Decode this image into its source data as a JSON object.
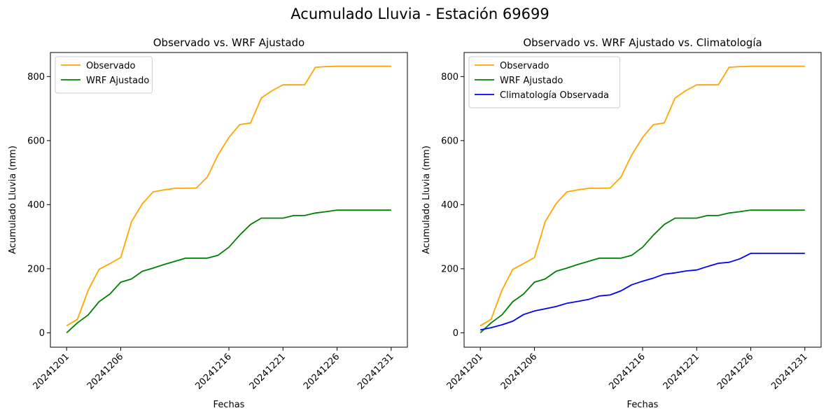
{
  "figure": {
    "title": "Acumulado Lluvia - Estación 69699"
  },
  "chart_data": [
    {
      "type": "line",
      "title": "Observado vs. WRF Ajustado",
      "xlabel": "Fechas",
      "ylabel": "Acumulado Lluvia (mm)",
      "x": [
        "20241201",
        "20241202",
        "20241203",
        "20241204",
        "20241205",
        "20241206",
        "20241207",
        "20241208",
        "20241209",
        "20241210",
        "20241211",
        "20241212",
        "20241213",
        "20241214",
        "20241215",
        "20241216",
        "20241217",
        "20241218",
        "20241219",
        "20241220",
        "20241221",
        "20241222",
        "20241223",
        "20241224",
        "20241225",
        "20241226",
        "20241227",
        "20241228",
        "20241229",
        "20241230",
        "20241231"
      ],
      "x_tick_labels": [
        "20241201",
        "20241206",
        "20241216",
        "20241221",
        "20241226",
        "20241231"
      ],
      "ylim": [
        -45,
        875
      ],
      "y_ticks": [
        0,
        200,
        400,
        600,
        800
      ],
      "legend_position": "upper-left",
      "grid": false,
      "series": [
        {
          "name": "Observado",
          "color": "#ffa500",
          "values": [
            22,
            42,
            133,
            198,
            216,
            235,
            347,
            403,
            440,
            446,
            451,
            451,
            452,
            486,
            555,
            610,
            650,
            655,
            733,
            756,
            774,
            774,
            774,
            829,
            831,
            832,
            832,
            832,
            832,
            832,
            832
          ]
        },
        {
          "name": "WRF Ajustado",
          "color": "#008000",
          "values": [
            0,
            31,
            56,
            97,
            121,
            158,
            168,
            192,
            202,
            213,
            223,
            233,
            233,
            233,
            242,
            267,
            305,
            338,
            358,
            358,
            358,
            366,
            366,
            374,
            378,
            383,
            383,
            383,
            383,
            383,
            383
          ]
        }
      ]
    },
    {
      "type": "line",
      "title": "Observado vs. WRF Ajustado vs. Climatología",
      "xlabel": "Fechas",
      "ylabel": "Acumulado Lluvia (mm)",
      "x": [
        "20241201",
        "20241202",
        "20241203",
        "20241204",
        "20241205",
        "20241206",
        "20241207",
        "20241208",
        "20241209",
        "20241210",
        "20241211",
        "20241212",
        "20241213",
        "20241214",
        "20241215",
        "20241216",
        "20241217",
        "20241218",
        "20241219",
        "20241220",
        "20241221",
        "20241222",
        "20241223",
        "20241224",
        "20241225",
        "20241226",
        "20241227",
        "20241228",
        "20241229",
        "20241230",
        "20241231"
      ],
      "x_tick_labels": [
        "20241201",
        "20241206",
        "20241216",
        "20241221",
        "20241226",
        "20241231"
      ],
      "ylim": [
        -45,
        875
      ],
      "y_ticks": [
        0,
        200,
        400,
        600,
        800
      ],
      "legend_position": "upper-left",
      "grid": false,
      "series": [
        {
          "name": "Observado",
          "color": "#ffa500",
          "values": [
            22,
            42,
            133,
            198,
            216,
            235,
            347,
            403,
            440,
            446,
            451,
            451,
            452,
            486,
            555,
            610,
            650,
            655,
            733,
            756,
            774,
            774,
            774,
            829,
            831,
            832,
            832,
            832,
            832,
            832,
            832
          ]
        },
        {
          "name": "WRF Ajustado",
          "color": "#008000",
          "values": [
            0,
            31,
            56,
            97,
            121,
            158,
            168,
            192,
            202,
            213,
            223,
            233,
            233,
            233,
            242,
            267,
            305,
            338,
            358,
            358,
            358,
            366,
            366,
            374,
            378,
            383,
            383,
            383,
            383,
            383,
            383
          ]
        },
        {
          "name": "Climatología Observada",
          "color": "#0000ff",
          "values": [
            9,
            16,
            25,
            36,
            57,
            68,
            75,
            82,
            92,
            98,
            104,
            115,
            118,
            131,
            150,
            161,
            171,
            183,
            187,
            193,
            196,
            207,
            217,
            220,
            231,
            248,
            248,
            248,
            248,
            248,
            248
          ]
        }
      ]
    }
  ]
}
